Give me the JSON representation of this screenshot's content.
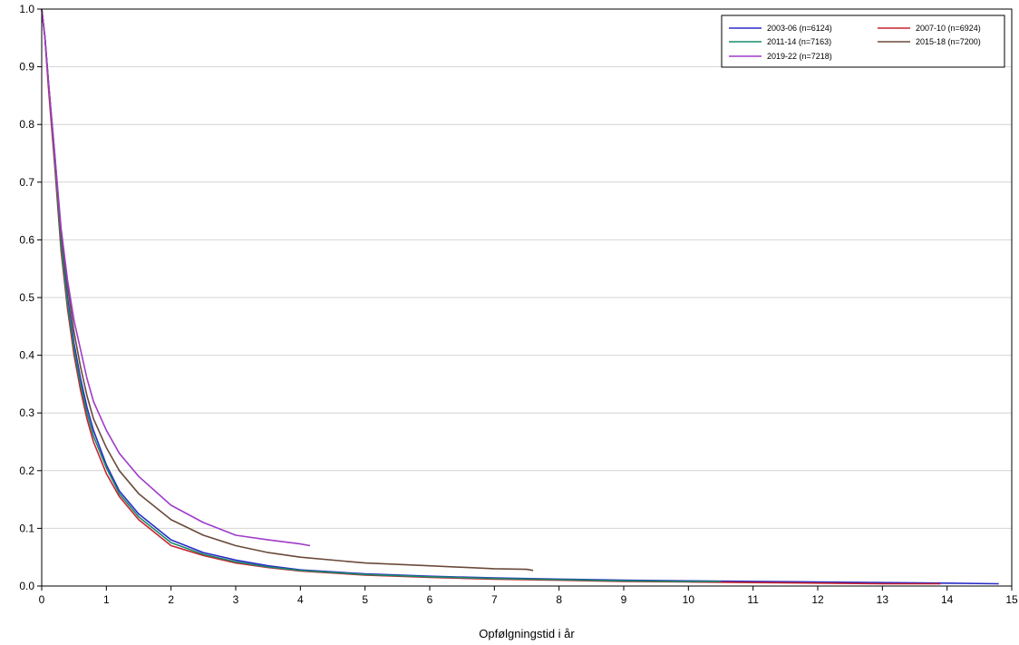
{
  "chart_data": {
    "type": "line",
    "title": "",
    "xlabel": "Opfølgningstid i år",
    "ylabel": "",
    "xlim": [
      0,
      15
    ],
    "ylim": [
      0,
      1.0
    ],
    "x_ticks": [
      "0",
      "1",
      "2",
      "3",
      "4",
      "5",
      "6",
      "7",
      "8",
      "9",
      "10",
      "11",
      "12",
      "13",
      "14",
      "15"
    ],
    "y_ticks": [
      "0.0",
      "0.1",
      "0.2",
      "0.3",
      "0.4",
      "0.5",
      "0.6",
      "0.7",
      "0.8",
      "0.9",
      "1.0"
    ],
    "grid": "horizontal",
    "legend_position": "top-right",
    "series": [
      {
        "name": "2003-06 (n=6124)",
        "color": "#2b2bc8",
        "points": [
          [
            0,
            1.0
          ],
          [
            0.05,
            0.95
          ],
          [
            0.1,
            0.88
          ],
          [
            0.2,
            0.74
          ],
          [
            0.3,
            0.6
          ],
          [
            0.4,
            0.5
          ],
          [
            0.5,
            0.42
          ],
          [
            0.6,
            0.36
          ],
          [
            0.7,
            0.31
          ],
          [
            0.8,
            0.27
          ],
          [
            1.0,
            0.21
          ],
          [
            1.2,
            0.165
          ],
          [
            1.5,
            0.125
          ],
          [
            2.0,
            0.08
          ],
          [
            2.5,
            0.058
          ],
          [
            3.0,
            0.045
          ],
          [
            3.5,
            0.035
          ],
          [
            4.0,
            0.028
          ],
          [
            5.0,
            0.021
          ],
          [
            6.0,
            0.017
          ],
          [
            7.0,
            0.014
          ],
          [
            8.0,
            0.012
          ],
          [
            9.0,
            0.01
          ],
          [
            10.0,
            0.009
          ],
          [
            11.0,
            0.008
          ],
          [
            12.0,
            0.007
          ],
          [
            13.0,
            0.006
          ],
          [
            14.0,
            0.005
          ],
          [
            14.8,
            0.004
          ]
        ]
      },
      {
        "name": "2007-10 (n=6924)",
        "color": "#c8242f",
        "points": [
          [
            0,
            1.0
          ],
          [
            0.05,
            0.95
          ],
          [
            0.1,
            0.87
          ],
          [
            0.2,
            0.73
          ],
          [
            0.3,
            0.58
          ],
          [
            0.4,
            0.48
          ],
          [
            0.5,
            0.4
          ],
          [
            0.6,
            0.34
          ],
          [
            0.7,
            0.29
          ],
          [
            0.8,
            0.25
          ],
          [
            1.0,
            0.195
          ],
          [
            1.2,
            0.155
          ],
          [
            1.5,
            0.115
          ],
          [
            2.0,
            0.07
          ],
          [
            2.5,
            0.053
          ],
          [
            3.0,
            0.04
          ],
          [
            3.5,
            0.032
          ],
          [
            4.0,
            0.026
          ],
          [
            5.0,
            0.019
          ],
          [
            6.0,
            0.015
          ],
          [
            7.0,
            0.012
          ],
          [
            8.0,
            0.01
          ],
          [
            9.0,
            0.008
          ],
          [
            10.0,
            0.007
          ],
          [
            11.0,
            0.006
          ],
          [
            12.0,
            0.005
          ],
          [
            13.0,
            0.004
          ],
          [
            13.9,
            0.004
          ]
        ]
      },
      {
        "name": "2011-14 (n=7163)",
        "color": "#1a8a6a",
        "points": [
          [
            0,
            1.0
          ],
          [
            0.05,
            0.95
          ],
          [
            0.1,
            0.88
          ],
          [
            0.2,
            0.74
          ],
          [
            0.3,
            0.59
          ],
          [
            0.4,
            0.49
          ],
          [
            0.5,
            0.41
          ],
          [
            0.6,
            0.35
          ],
          [
            0.7,
            0.3
          ],
          [
            0.8,
            0.26
          ],
          [
            1.0,
            0.205
          ],
          [
            1.2,
            0.16
          ],
          [
            1.5,
            0.12
          ],
          [
            2.0,
            0.075
          ],
          [
            2.5,
            0.055
          ],
          [
            3.0,
            0.042
          ],
          [
            3.5,
            0.033
          ],
          [
            4.0,
            0.027
          ],
          [
            5.0,
            0.02
          ],
          [
            6.0,
            0.016
          ],
          [
            7.0,
            0.013
          ],
          [
            8.0,
            0.011
          ],
          [
            9.0,
            0.009
          ],
          [
            10.0,
            0.008
          ],
          [
            10.5,
            0.008
          ]
        ]
      },
      {
        "name": "2015-18 (n=7200)",
        "color": "#6b4a3a",
        "points": [
          [
            0,
            1.0
          ],
          [
            0.05,
            0.95
          ],
          [
            0.1,
            0.88
          ],
          [
            0.2,
            0.75
          ],
          [
            0.3,
            0.61
          ],
          [
            0.4,
            0.52
          ],
          [
            0.5,
            0.44
          ],
          [
            0.6,
            0.38
          ],
          [
            0.7,
            0.33
          ],
          [
            0.8,
            0.29
          ],
          [
            1.0,
            0.24
          ],
          [
            1.2,
            0.2
          ],
          [
            1.5,
            0.16
          ],
          [
            2.0,
            0.115
          ],
          [
            2.5,
            0.088
          ],
          [
            3.0,
            0.07
          ],
          [
            3.5,
            0.058
          ],
          [
            4.0,
            0.05
          ],
          [
            5.0,
            0.04
          ],
          [
            6.0,
            0.035
          ],
          [
            7.0,
            0.03
          ],
          [
            7.5,
            0.029
          ],
          [
            7.6,
            0.027
          ]
        ]
      },
      {
        "name": "2019-22 (n=7218)",
        "color": "#a03cc8",
        "points": [
          [
            0,
            1.0
          ],
          [
            0.05,
            0.95
          ],
          [
            0.1,
            0.88
          ],
          [
            0.2,
            0.75
          ],
          [
            0.3,
            0.62
          ],
          [
            0.4,
            0.53
          ],
          [
            0.5,
            0.46
          ],
          [
            0.6,
            0.41
          ],
          [
            0.7,
            0.36
          ],
          [
            0.8,
            0.32
          ],
          [
            1.0,
            0.27
          ],
          [
            1.2,
            0.23
          ],
          [
            1.5,
            0.19
          ],
          [
            2.0,
            0.14
          ],
          [
            2.5,
            0.11
          ],
          [
            3.0,
            0.088
          ],
          [
            3.5,
            0.08
          ],
          [
            4.0,
            0.073
          ],
          [
            4.15,
            0.07
          ]
        ]
      }
    ]
  }
}
